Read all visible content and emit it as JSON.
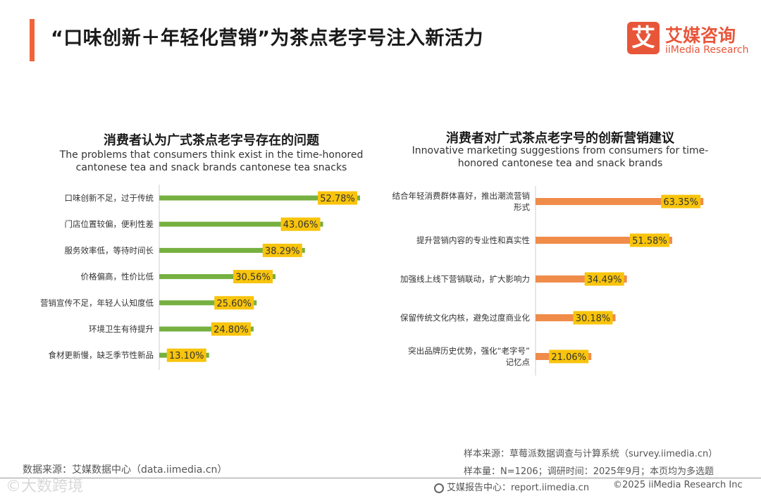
{
  "page": {
    "title": "“口味创新＋年轻化营销”为茶点老字号注入新活力"
  },
  "logo": {
    "mark": "艾",
    "name_cn": "艾媒咨询",
    "name_en": "iiMedia Research"
  },
  "colors": {
    "accent": "#f0643c",
    "green": "#76b041",
    "orange": "#f08c4a",
    "label_bg": "#f8c40c"
  },
  "chart_data": [
    {
      "type": "bar",
      "orientation": "horizontal",
      "title": "消费者认为广式茶点老字号存在的问题",
      "subtitle_lines": [
        "The problems that consumers think exist in the time-honored",
        "cantonese tea and snack brands cantonese tea snacks"
      ],
      "categories": [
        [
          "口味创新不足，过于传统"
        ],
        [
          "门店位置较偏，便利性差"
        ],
        [
          "服务效率低，等待时间长"
        ],
        [
          "价格偏高，性价比低"
        ],
        [
          "营销宣传不足，年轻人认知度低"
        ],
        [
          "环境卫生有待提升"
        ],
        [
          "食材更新慢，缺乏季节性新品"
        ]
      ],
      "values": [
        52.78,
        43.06,
        38.29,
        30.56,
        25.6,
        24.8,
        13.1
      ],
      "labels": [
        "52.78%",
        "43.06%",
        "38.29%",
        "30.56%",
        "25.60%",
        "24.80%",
        "13.10%"
      ],
      "unit": "%",
      "color": "#76b041"
    },
    {
      "type": "bar",
      "orientation": "horizontal",
      "title": "消费者对广式茶点老字号的创新营销建议",
      "subtitle_lines": [
        "Innovative marketing suggestions from consumers for time-",
        "honored cantonese tea and snack brands"
      ],
      "categories": [
        [
          "结合年轻消费群体喜好，推出潮流营销",
          "形式"
        ],
        [
          "提升营销内容的专业性和真实性"
        ],
        [
          "加强线上线下营销联动，扩大影响力"
        ],
        [
          "保留传统文化内核，避免过度商业化"
        ],
        [
          "突出品牌历史优势，强化“老字号”",
          "记忆点"
        ]
      ],
      "values": [
        63.35,
        51.58,
        34.49,
        30.18,
        21.06
      ],
      "labels": [
        "63.35%",
        "51.58%",
        "34.49%",
        "30.18%",
        "21.06%"
      ],
      "unit": "%",
      "color": "#f08c4a"
    }
  ],
  "footer": {
    "source_left": "数据来源：艾媒数据中心（data.iimedia.cn）",
    "sample_source": "样本来源：草莓派数据调查与计算系统（survey.iimedia.cn）",
    "sample_size": "样本量：N=1206；调研时间：2025年9月；本页均为多选题",
    "report_center": "艾媒报告中心：report.iimedia.cn",
    "copyright": "©2025  iiMedia Research  Inc",
    "watermark": "©大数跨境"
  }
}
